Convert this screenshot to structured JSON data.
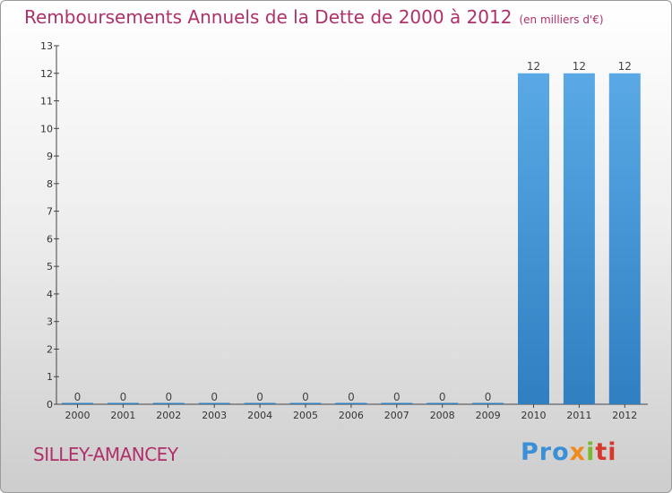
{
  "header": {
    "title": "Remboursements Annuels de la Dette de 2000 à 2012",
    "subtitle": "(en milliers d'€)"
  },
  "footer": {
    "commune": "SILLEY-AMANCEY",
    "logo_parts": [
      "Pro",
      "x",
      "i",
      "ti"
    ]
  },
  "colors": {
    "title": "#b0306a",
    "bar_top": "#5aa9e6",
    "bar_bottom": "#2f7fc1",
    "axis": "#444444"
  },
  "chart_data": {
    "type": "bar",
    "title": "Remboursements Annuels de la Dette de 2000 à 2012",
    "subtitle": "(en milliers d'€)",
    "categories": [
      "2000",
      "2001",
      "2002",
      "2003",
      "2004",
      "2005",
      "2006",
      "2007",
      "2008",
      "2009",
      "2010",
      "2011",
      "2012"
    ],
    "values": [
      0,
      0,
      0,
      0,
      0,
      0,
      0,
      0,
      0,
      0,
      12,
      12,
      12
    ],
    "data_labels": [
      "0",
      "0",
      "0",
      "0",
      "0",
      "0",
      "0",
      "0",
      "0",
      "0",
      "12",
      "12",
      "12"
    ],
    "ylim": [
      0,
      13
    ],
    "yticks": [
      0,
      1,
      2,
      3,
      4,
      5,
      6,
      7,
      8,
      9,
      10,
      11,
      12,
      13
    ],
    "xlabel": "",
    "ylabel": "",
    "grid": false,
    "legend": "none"
  }
}
